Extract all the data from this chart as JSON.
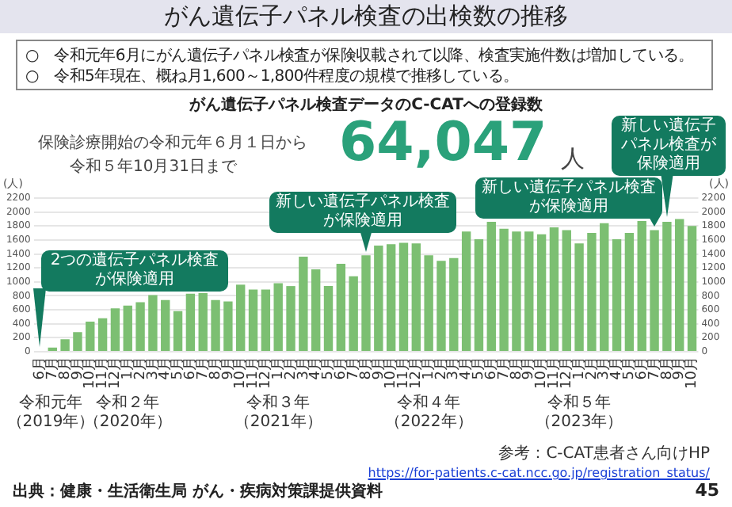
{
  "chart_data": {
    "type": "bar",
    "title": "がん遺伝子パネル検査の出検数の推移",
    "subtitle": "がん遺伝子パネル検査データのC-CATへの登録数",
    "ylabel": "(人)",
    "y2label": "(人)",
    "categories": [
      "6月",
      "7月",
      "8月",
      "9月",
      "10月",
      "11月",
      "12月",
      "1月",
      "2月",
      "3月",
      "4月",
      "5月",
      "6月",
      "7月",
      "8月",
      "9月",
      "10月",
      "11月",
      "12月",
      "1月",
      "2月",
      "3月",
      "4月",
      "5月",
      "6月",
      "7月",
      "8月",
      "9月",
      "10月",
      "11月",
      "12月",
      "1月",
      "2月",
      "3月",
      "4月",
      "5月",
      "6月",
      "7月",
      "8月",
      "9月",
      "10月",
      "11月",
      "12月",
      "1月",
      "2月",
      "3月",
      "4月",
      "5月",
      "6月",
      "7月",
      "8月",
      "9月",
      "10月"
    ],
    "values": [
      10,
      60,
      180,
      280,
      430,
      480,
      620,
      660,
      710,
      810,
      740,
      580,
      830,
      840,
      740,
      720,
      960,
      890,
      890,
      980,
      940,
      1360,
      1180,
      940,
      1260,
      1080,
      1380,
      1520,
      1540,
      1560,
      1550,
      1380,
      1300,
      1340,
      1720,
      1610,
      1860,
      1760,
      1720,
      1720,
      1680,
      1780,
      1740,
      1550,
      1700,
      1840,
      1610,
      1700,
      1870,
      1740,
      1860,
      1900,
      1800
    ],
    "color": "#7cbf72",
    "ylim": [
      0,
      2200
    ],
    "yticks": [
      0,
      200,
      400,
      600,
      800,
      1000,
      1200,
      1400,
      1600,
      1800,
      2000,
      2200
    ],
    "y2lim": [
      0,
      2200
    ],
    "y2ticks": [
      0,
      200,
      400,
      600,
      800,
      1000,
      1200,
      1400,
      1600,
      1800,
      2000,
      2200
    ],
    "grid": "y",
    "annotations": [
      "○　令和元年6月にがん遺伝子パネル検査が保険収載されて以降、検査実施件数は増加している。",
      "○　令和5年現在、概ね月1,600～1,800件程度の規模で推移している。",
      "保険診療開始の令和元年６月１日から",
      "令和５年10月31日まで",
      "64,047",
      "人",
      "2つの遺伝子パネル検査が保険適用",
      "新しい遺伝子パネル検査が保険適用",
      "新しい遺伝子パネル検査が保険適用",
      "新しい遺伝子パネル検査が保険適用",
      "参考：C-CAT患者さん向けHP",
      "https://for-patients.c-cat.ncc.go.jp/registration_status/",
      "出典：健康・生活衛生局 がん・疾病対策課提供資料",
      "45",
      "令和元年",
      "（2019年）",
      "令和２年",
      "（2020年）",
      "令和３年",
      "（2021年）",
      "令和４年",
      "（2022年）",
      "令和５年",
      "（2023年）"
    ]
  }
}
